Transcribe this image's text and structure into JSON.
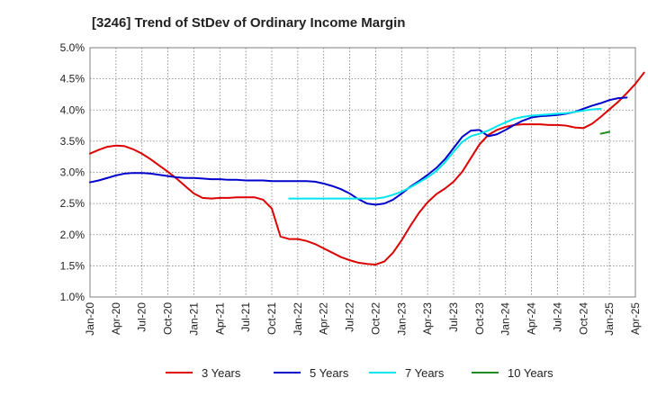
{
  "chart_data": {
    "type": "line",
    "title": "[3246]  Trend of StDev of Ordinary Income Margin",
    "xlabel": "",
    "ylabel": "",
    "ylim": [
      1.0,
      5.0
    ],
    "y_ticks": [
      "1.0%",
      "1.5%",
      "2.0%",
      "2.5%",
      "3.0%",
      "3.5%",
      "4.0%",
      "4.5%",
      "5.0%"
    ],
    "x_ticks": [
      "Jan-20",
      "Apr-20",
      "Jul-20",
      "Oct-20",
      "Jan-21",
      "Apr-21",
      "Jul-21",
      "Oct-21",
      "Jan-22",
      "Apr-22",
      "Jul-22",
      "Oct-22",
      "Jan-23",
      "Apr-23",
      "Jul-23",
      "Oct-23",
      "Jan-24",
      "Apr-24",
      "Jul-24",
      "Oct-24",
      "Jan-25",
      "Apr-25"
    ],
    "x_start": "Jan-20",
    "grid": "dotted",
    "legend_position": "bottom",
    "series": [
      {
        "name": "3 Years",
        "color": "#dd0000",
        "start": "Jan-20",
        "values": [
          3.3,
          3.36,
          3.41,
          3.43,
          3.42,
          3.37,
          3.3,
          3.21,
          3.11,
          3.01,
          2.9,
          2.78,
          2.66,
          2.59,
          2.58,
          2.59,
          2.59,
          2.6,
          2.6,
          2.6,
          2.56,
          2.42,
          1.97,
          1.93,
          1.93,
          1.9,
          1.85,
          1.78,
          1.71,
          1.64,
          1.59,
          1.55,
          1.53,
          1.52,
          1.57,
          1.71,
          1.91,
          2.14,
          2.35,
          2.52,
          2.65,
          2.74,
          2.85,
          3.01,
          3.23,
          3.45,
          3.6,
          3.68,
          3.73,
          3.76,
          3.77,
          3.77,
          3.77,
          3.76,
          3.76,
          3.75,
          3.72,
          3.71,
          3.78,
          3.89,
          4.01,
          4.13,
          4.27,
          4.42,
          4.6
        ]
      },
      {
        "name": "5 Years",
        "color": "#0000cc",
        "start": "Jan-20",
        "values": [
          2.84,
          2.87,
          2.91,
          2.95,
          2.98,
          2.99,
          2.99,
          2.98,
          2.96,
          2.94,
          2.92,
          2.91,
          2.91,
          2.9,
          2.89,
          2.89,
          2.88,
          2.88,
          2.87,
          2.87,
          2.87,
          2.86,
          2.86,
          2.86,
          2.86,
          2.86,
          2.85,
          2.82,
          2.78,
          2.73,
          2.66,
          2.57,
          2.5,
          2.48,
          2.5,
          2.56,
          2.66,
          2.77,
          2.86,
          2.96,
          3.07,
          3.21,
          3.39,
          3.57,
          3.67,
          3.68,
          3.58,
          3.61,
          3.68,
          3.76,
          3.83,
          3.88,
          3.9,
          3.91,
          3.92,
          3.94,
          3.97,
          4.02,
          4.07,
          4.11,
          4.16,
          4.19,
          4.2
        ]
      },
      {
        "name": "7 Years",
        "color": "#00e5ee",
        "start": "Dec-21",
        "values": [
          2.58,
          2.58,
          2.58,
          2.58,
          2.58,
          2.58,
          2.58,
          2.58,
          2.58,
          2.58,
          2.58,
          2.6,
          2.64,
          2.69,
          2.76,
          2.84,
          2.92,
          3.02,
          3.16,
          3.33,
          3.49,
          3.58,
          3.62,
          3.67,
          3.74,
          3.8,
          3.86,
          3.89,
          3.91,
          3.92,
          3.93,
          3.94,
          3.95,
          3.97,
          3.99,
          4.01,
          4.02
        ]
      },
      {
        "name": "10 Years",
        "color": "#228b22",
        "start": "Dec-24",
        "values": [
          3.62,
          3.65
        ]
      }
    ]
  }
}
